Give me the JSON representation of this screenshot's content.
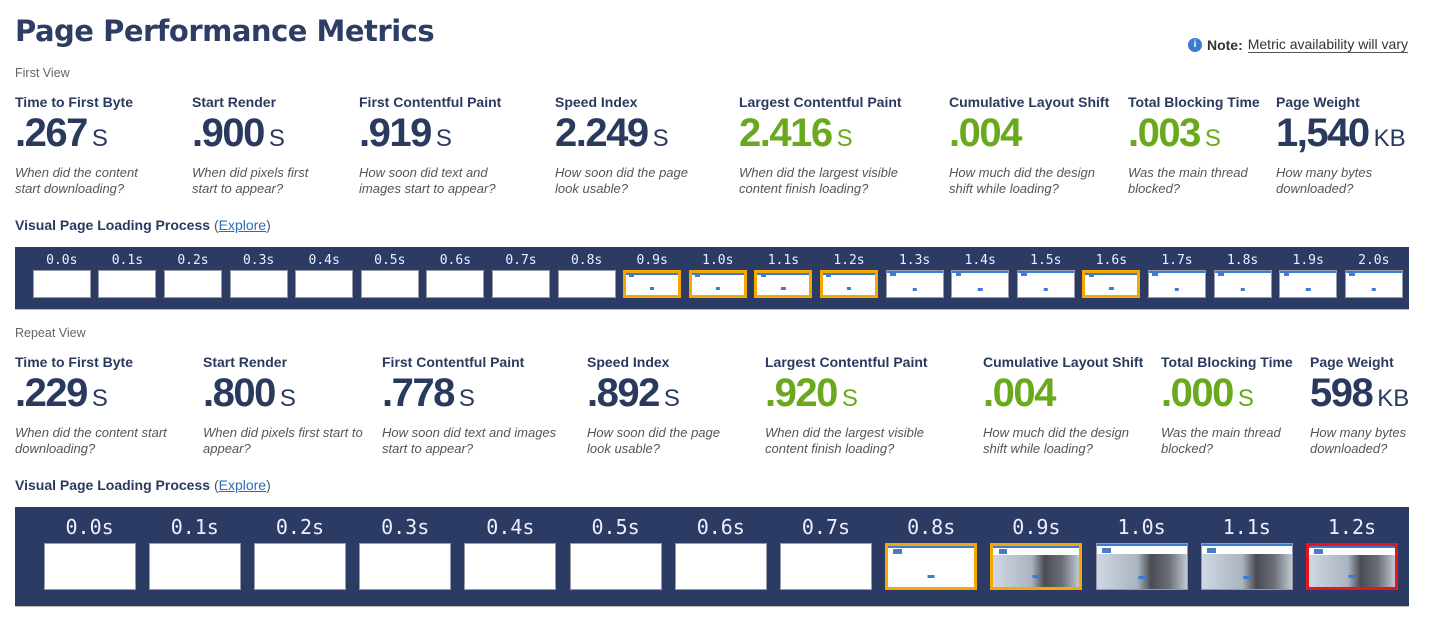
{
  "title": "Page Performance Metrics",
  "note": {
    "bold": "Note:",
    "text": "Metric availability will vary",
    "icon": "info-icon"
  },
  "colors": {
    "navy": "#2c3b63",
    "green": "#6aa91d",
    "highlight_orange": "#f5a800",
    "highlight_red": "#e8141a",
    "link": "#2a6ebb"
  },
  "first_view": {
    "label": "First View",
    "metrics": [
      {
        "label": "Time to First Byte",
        "value": ".267",
        "unit": "S",
        "desc": "When did the content start downloading?",
        "good": false
      },
      {
        "label": "Start Render",
        "value": ".900",
        "unit": "S",
        "desc": "When did pixels first start to appear?",
        "good": false
      },
      {
        "label": "First Contentful Paint",
        "value": ".919",
        "unit": "S",
        "desc": "How soon did text and images start to appear?",
        "good": false
      },
      {
        "label": "Speed Index",
        "value": "2.249",
        "unit": "S",
        "desc": "How soon did the page look usable?",
        "good": false
      },
      {
        "label": "Largest Contentful Paint",
        "value": "2.416",
        "unit": "S",
        "desc": "When did the largest visible content finish loading?",
        "good": true
      },
      {
        "label": "Cumulative Layout Shift",
        "value": ".004",
        "unit": "",
        "desc": "How much did the design shift while loading?",
        "good": true
      },
      {
        "label": "Total Blocking Time",
        "value": ".003",
        "unit": "S",
        "desc": "Was the main thread blocked?",
        "good": true
      },
      {
        "label": "Page Weight",
        "value": "1,540",
        "unit": "KB",
        "desc": "How many bytes downloaded?",
        "good": false
      }
    ],
    "visual": {
      "label": "Visual Page Loading Process",
      "paren_open": "(",
      "link": "Explore",
      "paren_close": ")"
    },
    "frames": [
      {
        "time": "0.0s",
        "state": "blank",
        "highlight": ""
      },
      {
        "time": "0.1s",
        "state": "blank",
        "highlight": ""
      },
      {
        "time": "0.2s",
        "state": "blank",
        "highlight": ""
      },
      {
        "time": "0.3s",
        "state": "blank",
        "highlight": ""
      },
      {
        "time": "0.4s",
        "state": "blank",
        "highlight": ""
      },
      {
        "time": "0.5s",
        "state": "blank",
        "highlight": ""
      },
      {
        "time": "0.6s",
        "state": "blank",
        "highlight": ""
      },
      {
        "time": "0.7s",
        "state": "blank",
        "highlight": ""
      },
      {
        "time": "0.8s",
        "state": "blank",
        "highlight": ""
      },
      {
        "time": "0.9s",
        "state": "partial",
        "highlight": "orange"
      },
      {
        "time": "1.0s",
        "state": "partial",
        "highlight": "orange"
      },
      {
        "time": "1.1s",
        "state": "partial",
        "highlight": "orange"
      },
      {
        "time": "1.2s",
        "state": "partial",
        "highlight": "orange"
      },
      {
        "time": "1.3s",
        "state": "partial",
        "highlight": ""
      },
      {
        "time": "1.4s",
        "state": "partial",
        "highlight": ""
      },
      {
        "time": "1.5s",
        "state": "partial",
        "highlight": ""
      },
      {
        "time": "1.6s",
        "state": "partial",
        "highlight": "orange"
      },
      {
        "time": "1.7s",
        "state": "partial",
        "highlight": ""
      },
      {
        "time": "1.8s",
        "state": "partial",
        "highlight": ""
      },
      {
        "time": "1.9s",
        "state": "partial",
        "highlight": ""
      },
      {
        "time": "2.0s",
        "state": "partial",
        "highlight": ""
      }
    ]
  },
  "repeat_view": {
    "label": "Repeat View",
    "metrics": [
      {
        "label": "Time to First Byte",
        "value": ".229",
        "unit": "S",
        "desc": "When did the content start downloading?",
        "good": false
      },
      {
        "label": "Start Render",
        "value": ".800",
        "unit": "S",
        "desc": "When did pixels first start to appear?",
        "good": false
      },
      {
        "label": "First Contentful Paint",
        "value": ".778",
        "unit": "S",
        "desc": "How soon did text and images start to appear?",
        "good": false
      },
      {
        "label": "Speed Index",
        "value": ".892",
        "unit": "S",
        "desc": "How soon did the page look usable?",
        "good": false
      },
      {
        "label": "Largest Contentful Paint",
        "value": ".920",
        "unit": "S",
        "desc": "When did the largest visible content finish loading?",
        "good": true
      },
      {
        "label": "Cumulative Layout Shift",
        "value": ".004",
        "unit": "",
        "desc": "How much did the design shift while loading?",
        "good": true
      },
      {
        "label": "Total Blocking Time",
        "value": ".000",
        "unit": "S",
        "desc": "Was the main thread blocked?",
        "good": true
      },
      {
        "label": "Page Weight",
        "value": "598",
        "unit": "KB",
        "desc": "How many bytes downloaded?",
        "good": false
      }
    ],
    "visual": {
      "label": "Visual Page Loading Process",
      "paren_open": "(",
      "link": "Explore",
      "paren_close": ")"
    },
    "frames": [
      {
        "time": "0.0s",
        "state": "blank",
        "highlight": ""
      },
      {
        "time": "0.1s",
        "state": "blank",
        "highlight": ""
      },
      {
        "time": "0.2s",
        "state": "blank",
        "highlight": ""
      },
      {
        "time": "0.3s",
        "state": "blank",
        "highlight": ""
      },
      {
        "time": "0.4s",
        "state": "blank",
        "highlight": ""
      },
      {
        "time": "0.5s",
        "state": "blank",
        "highlight": ""
      },
      {
        "time": "0.6s",
        "state": "blank",
        "highlight": ""
      },
      {
        "time": "0.7s",
        "state": "blank",
        "highlight": ""
      },
      {
        "time": "0.8s",
        "state": "partial",
        "highlight": "orange"
      },
      {
        "time": "0.9s",
        "state": "hero",
        "highlight": "orange"
      },
      {
        "time": "1.0s",
        "state": "hero",
        "highlight": ""
      },
      {
        "time": "1.1s",
        "state": "hero",
        "highlight": ""
      },
      {
        "time": "1.2s",
        "state": "hero",
        "highlight": "red"
      }
    ]
  }
}
